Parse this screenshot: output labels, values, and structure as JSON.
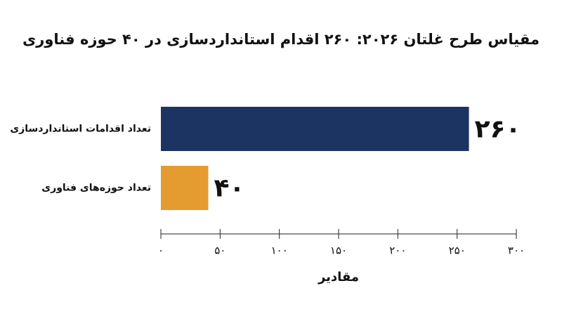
{
  "chart_data": {
    "type": "bar",
    "orientation": "horizontal",
    "title": "مقیاس طرح غلتان ۲۰۲۶: ۲۶۰ اقدام استانداردسازی در ۴۰ حوزه فناوری",
    "categories": [
      "تعداد اقدامات استانداردسازی",
      "تعداد حوزه‌های فناوری"
    ],
    "values": [
      260,
      40
    ],
    "value_labels": [
      "۲۶۰",
      "۴۰"
    ],
    "colors": [
      "#1c3461",
      "#e49b2f"
    ],
    "x_label": "مقادیر",
    "xlim": [
      0,
      300
    ],
    "xticks": [
      {
        "value": 0,
        "label": "۰"
      },
      {
        "value": 50,
        "label": "۵۰"
      },
      {
        "value": 100,
        "label": "۱۰۰"
      },
      {
        "value": 150,
        "label": "۱۵۰"
      },
      {
        "value": 200,
        "label": "۲۰۰"
      },
      {
        "value": 250,
        "label": "۲۵۰"
      },
      {
        "value": 300,
        "label": "۳۰۰"
      }
    ]
  }
}
